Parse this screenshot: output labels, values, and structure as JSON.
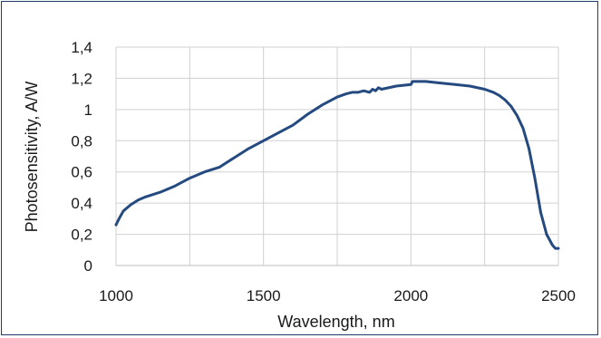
{
  "chart_data": {
    "type": "line",
    "title": "",
    "xlabel": "Wavelength, nm",
    "ylabel": "Photosensitivity, A/W",
    "xlim": [
      1000,
      2500
    ],
    "ylim": [
      0,
      1.4
    ],
    "x_ticks": [
      1000,
      1500,
      2000,
      2500
    ],
    "x_tick_labels": [
      "1000",
      "1500",
      "2000",
      "2500"
    ],
    "y_ticks": [
      0,
      0.2,
      0.4,
      0.6,
      0.8,
      1.0,
      1.2,
      1.4
    ],
    "y_tick_labels": [
      "0",
      "0,2",
      "0,4",
      "0,6",
      "0,8",
      "1",
      "1,2",
      "1,4"
    ],
    "grid": "vertical and horizontal",
    "legend": "none",
    "series": [
      {
        "color": "#244a80",
        "x": [
          1000,
          1010,
          1025,
          1050,
          1075,
          1100,
          1150,
          1200,
          1250,
          1300,
          1350,
          1400,
          1450,
          1500,
          1550,
          1600,
          1650,
          1700,
          1750,
          1780,
          1800,
          1820,
          1840,
          1860,
          1870,
          1880,
          1890,
          1900,
          1950,
          2000,
          2005,
          2010,
          2050,
          2100,
          2150,
          2200,
          2250,
          2280,
          2300,
          2320,
          2340,
          2360,
          2380,
          2400,
          2420,
          2440,
          2460,
          2480,
          2490,
          2500
        ],
        "y": [
          0.26,
          0.3,
          0.35,
          0.39,
          0.42,
          0.44,
          0.47,
          0.51,
          0.56,
          0.6,
          0.63,
          0.69,
          0.75,
          0.8,
          0.85,
          0.9,
          0.97,
          1.03,
          1.08,
          1.1,
          1.11,
          1.11,
          1.12,
          1.11,
          1.13,
          1.12,
          1.14,
          1.13,
          1.15,
          1.16,
          1.18,
          1.18,
          1.18,
          1.17,
          1.16,
          1.15,
          1.13,
          1.11,
          1.09,
          1.06,
          1.02,
          0.96,
          0.88,
          0.75,
          0.56,
          0.34,
          0.2,
          0.13,
          0.11,
          0.11
        ]
      }
    ]
  }
}
